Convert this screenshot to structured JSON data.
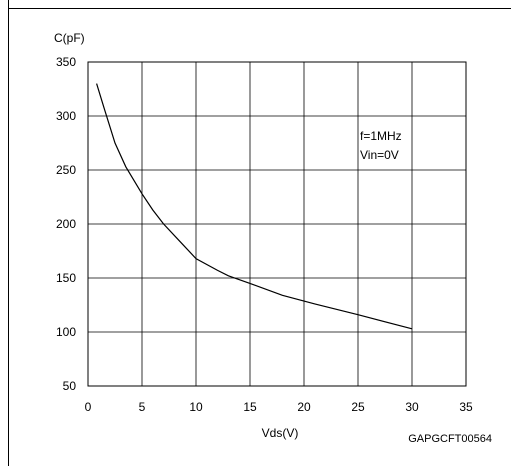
{
  "chart_data": {
    "type": "line",
    "ylabel": "C(pF)",
    "xlabel": "Vds(V)",
    "xlim": [
      0,
      35
    ],
    "ylim": [
      50,
      350
    ],
    "x_ticks": [
      0,
      5,
      10,
      15,
      20,
      25,
      30,
      35
    ],
    "y_ticks": [
      50,
      100,
      150,
      200,
      250,
      300,
      350
    ],
    "x_tick_labels": [
      "0",
      "5",
      "10",
      "15",
      "20",
      "25",
      "30",
      "35"
    ],
    "y_tick_labels": [
      "50",
      "100",
      "150",
      "200",
      "250",
      "300",
      "350"
    ],
    "grid": true,
    "annotations": [
      "f=1MHz",
      "Vin=0V"
    ],
    "code": "GAPGCFT00564",
    "series": [
      {
        "x": [
          0.8,
          1.5,
          2.5,
          3.5,
          5,
          6,
          7,
          8.5,
          10,
          12,
          13,
          15,
          18,
          21,
          25,
          30
        ],
        "values": [
          330,
          307,
          275,
          253,
          228,
          213,
          200,
          184,
          168,
          157,
          152,
          145,
          134,
          126,
          116,
          103
        ]
      }
    ]
  }
}
